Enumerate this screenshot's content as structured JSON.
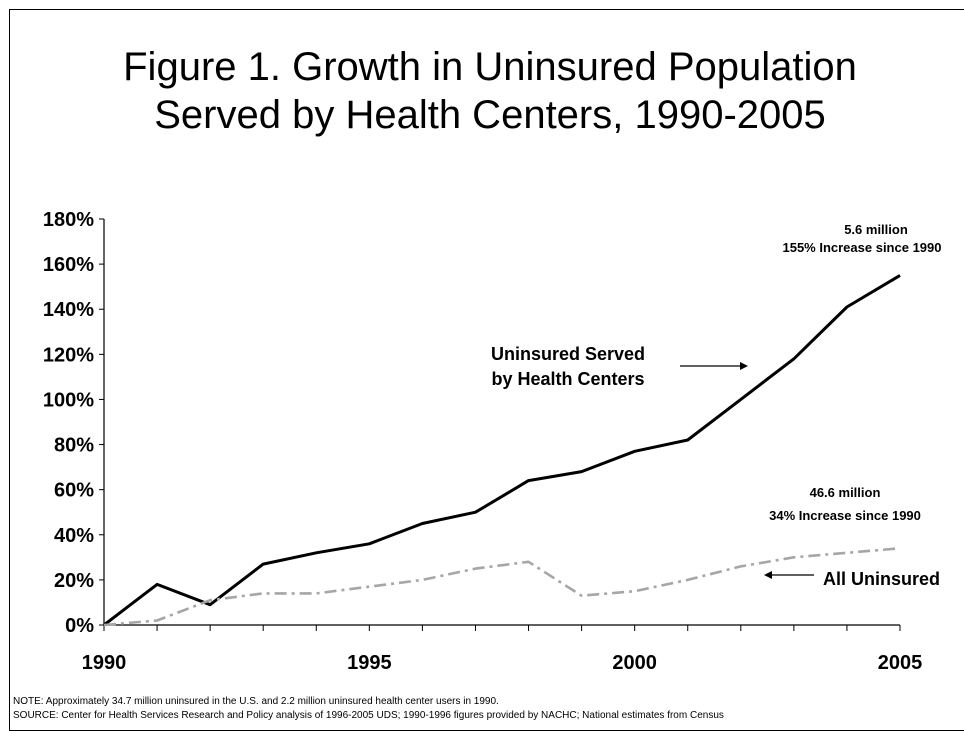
{
  "title": {
    "line1": "Figure 1. Growth in Uninsured Population",
    "line2": "Served by Health Centers, 1990-2005"
  },
  "chart_data": {
    "type": "line",
    "x": [
      1990,
      1991,
      1992,
      1993,
      1994,
      1995,
      1996,
      1997,
      1998,
      1999,
      2000,
      2001,
      2002,
      2003,
      2004,
      2005
    ],
    "x_tick_labels": [
      "1990",
      "1995",
      "2000",
      "2005"
    ],
    "y_tick_labels": [
      "0%",
      "20%",
      "40%",
      "60%",
      "80%",
      "100%",
      "120%",
      "140%",
      "160%",
      "180%"
    ],
    "ylim": [
      0,
      180
    ],
    "grid": false,
    "series": [
      {
        "name": "Uninsured Served by Health Centers",
        "color": "#000000",
        "style": "solid",
        "values": [
          0,
          18,
          9,
          27,
          32,
          36,
          45,
          50,
          64,
          68,
          77,
          82,
          100,
          118,
          141,
          155
        ]
      },
      {
        "name": "All Uninsured",
        "color": "#a6a6a6",
        "style": "dash-dot",
        "values": [
          0,
          2,
          11,
          14,
          14,
          17,
          20,
          25,
          28,
          13,
          15,
          20,
          26,
          30,
          32,
          34
        ]
      }
    ],
    "annotations": {
      "uninsured_served_line1": "Uninsured Served",
      "uninsured_served_line2": "by Health Centers",
      "all_uninsured": "All Uninsured",
      "top_end_line1": "5.6 million",
      "top_end_line2": "155% Increase since 1990",
      "bottom_end_line1": "46.6 million",
      "bottom_end_line2": "34% Increase since 1990"
    }
  },
  "notes": {
    "note": "NOTE: Approximately 34.7 million uninsured in the U.S. and 2.2 million uninsured health center users in 1990.",
    "source": "SOURCE: Center for Health Services Research and Policy analysis of 1996-2005 UDS; 1990-1996 figures provided by NACHC; National estimates from Census"
  }
}
